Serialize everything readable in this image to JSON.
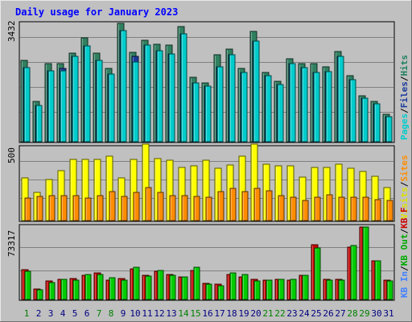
{
  "chart_data": [
    {
      "type": "bar",
      "title": "Daily usage for January 2023",
      "ytick": "3432",
      "ylim": [
        0,
        3432
      ],
      "legend": {
        "position": "right-vertical",
        "entries": [
          {
            "label": "Pages",
            "color": "#00cccc"
          },
          {
            "label": "Files",
            "color": "#1a3a9a"
          },
          {
            "label": "Hits",
            "color": "#208060"
          }
        ],
        "separator": "/"
      },
      "categories": [
        "1",
        "2",
        "3",
        "4",
        "5",
        "6",
        "7",
        "8",
        "9",
        "10",
        "11",
        "12",
        "13",
        "14",
        "15",
        "16",
        "17",
        "18",
        "19",
        "20",
        "21",
        "22",
        "23",
        "24",
        "25",
        "26",
        "27",
        "28",
        "29",
        "30",
        "31"
      ],
      "series": [
        {
          "name": "Hits",
          "color": "#308060",
          "values": [
            2340,
            1160,
            2260,
            2260,
            2540,
            2980,
            2560,
            2120,
            3420,
            2580,
            2920,
            2800,
            2780,
            3320,
            1850,
            1700,
            2500,
            2670,
            2100,
            3180,
            2000,
            1750,
            2380,
            2250,
            2240,
            2160,
            2600,
            1890,
            1320,
            1160,
            800
          ]
        },
        {
          "name": "Files",
          "color": "#1a3a9a",
          "values": [
            2140,
            1050,
            2040,
            2120,
            2460,
            2760,
            2340,
            1950,
            3200,
            2460,
            2780,
            2620,
            2520,
            3100,
            1700,
            1600,
            2160,
            2500,
            1990,
            2900,
            1890,
            1640,
            2260,
            2140,
            2000,
            2020,
            2460,
            1790,
            1260,
            1090,
            730
          ]
        },
        {
          "name": "Pages",
          "color": "#00cccc",
          "values": [
            2140,
            1050,
            2040,
            2040,
            2460,
            2760,
            2340,
            1950,
            3200,
            2300,
            2780,
            2620,
            2520,
            3100,
            1700,
            1600,
            2160,
            2500,
            1990,
            2900,
            1890,
            1640,
            2260,
            2140,
            2000,
            2020,
            2460,
            1790,
            1260,
            1090,
            730
          ]
        }
      ]
    },
    {
      "type": "bar",
      "ytick": "500",
      "ylim": [
        0,
        500
      ],
      "legend": {
        "position": "right-vertical",
        "entries": [
          {
            "label": "Visits",
            "color": "#e0e000"
          },
          {
            "label": "Sites",
            "color": "#ff8c00"
          }
        ],
        "separator": "/"
      },
      "categories": [
        "1",
        "2",
        "3",
        "4",
        "5",
        "6",
        "7",
        "8",
        "9",
        "10",
        "11",
        "12",
        "13",
        "14",
        "15",
        "16",
        "17",
        "18",
        "19",
        "20",
        "21",
        "22",
        "23",
        "24",
        "25",
        "26",
        "27",
        "28",
        "29",
        "30",
        "31"
      ],
      "series": [
        {
          "name": "Visits",
          "color": "#ffff00",
          "values": [
            290,
            190,
            275,
            335,
            415,
            415,
            415,
            435,
            290,
            415,
            515,
            420,
            405,
            360,
            370,
            410,
            355,
            375,
            435,
            515,
            380,
            370,
            370,
            295,
            360,
            360,
            380,
            355,
            330,
            300,
            225
          ]
        },
        {
          "name": "Sites",
          "color": "#ff8c00",
          "values": [
            150,
            165,
            170,
            170,
            170,
            150,
            170,
            195,
            165,
            190,
            225,
            190,
            170,
            170,
            165,
            155,
            195,
            220,
            195,
            215,
            200,
            170,
            160,
            135,
            155,
            175,
            155,
            155,
            160,
            140,
            135
          ]
        }
      ]
    },
    {
      "type": "bar",
      "ytick": "73317",
      "ylim": [
        0,
        73317
      ],
      "legend": {
        "position": "right-vertical",
        "entries": [
          {
            "label": "KB In",
            "color": "#4080ff"
          },
          {
            "label": "KB Out",
            "color": "#00aa00"
          },
          {
            "label": "KB F",
            "color": "#cc0000"
          }
        ],
        "separator": "/"
      },
      "categories": [
        "1",
        "2",
        "3",
        "4",
        "5",
        "6",
        "7",
        "8",
        "9",
        "10",
        "11",
        "12",
        "13",
        "14",
        "15",
        "16",
        "17",
        "18",
        "19",
        "20",
        "21",
        "22",
        "23",
        "24",
        "25",
        "26",
        "27",
        "28",
        "29",
        "30",
        "31"
      ],
      "series": [
        {
          "name": "KB F",
          "color": "#cc0000",
          "values": [
            29500,
            10500,
            18000,
            20000,
            20500,
            24000,
            26000,
            19000,
            21000,
            30000,
            24000,
            28000,
            25000,
            22000,
            29000,
            16000,
            15000,
            25000,
            22000,
            20000,
            19000,
            20000,
            19000,
            24000,
            54000,
            20000,
            20000,
            52000,
            72000,
            38500,
            19000
          ]
        },
        {
          "name": "KB Out",
          "color": "#00cc00",
          "values": [
            28000,
            9800,
            17000,
            20000,
            19500,
            24800,
            25000,
            21800,
            19400,
            32000,
            23000,
            29000,
            24000,
            22600,
            31500,
            15500,
            13500,
            26500,
            24500,
            18600,
            19000,
            19600,
            19600,
            23900,
            51200,
            18800,
            18800,
            53500,
            71400,
            38500,
            18500
          ]
        }
      ]
    }
  ],
  "xaxis": {
    "labels": [
      "1",
      "2",
      "3",
      "4",
      "5",
      "6",
      "7",
      "8",
      "9",
      "10",
      "11",
      "12",
      "13",
      "14",
      "15",
      "16",
      "17",
      "18",
      "19",
      "20",
      "21",
      "22",
      "23",
      "24",
      "25",
      "26",
      "27",
      "28",
      "29",
      "30",
      "31"
    ],
    "weekend_days": [
      "1",
      "7",
      "8",
      "14",
      "15",
      "21",
      "22",
      "28",
      "29"
    ],
    "weekday_color": "#000080",
    "weekend_color": "#008000"
  },
  "colors": {
    "background": "#c0c0c0",
    "panel": "#c0c0c0",
    "title": "#0000ff",
    "gridline": "#808080"
  }
}
